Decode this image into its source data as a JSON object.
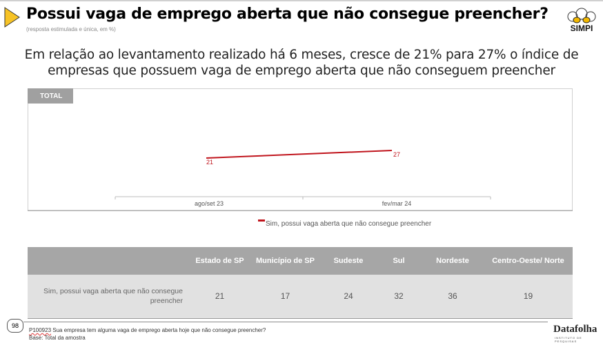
{
  "header": {
    "title": "Possui vaga de emprego aberta que não consegue preencher?",
    "subtitle": "(resposta estimulada e única, em %)",
    "logo": "SIMPI"
  },
  "headline": "Em relação ao levantamento realizado há 6 meses, cresce de 21% para 27% o índice de empresas que possuem vaga de emprego aberta que não conseguem preencher",
  "chart_data": {
    "type": "line",
    "panel_label": "TOTAL",
    "categories": [
      "ago/set 23",
      "fev/mar 24"
    ],
    "series": [
      {
        "name": "Sim, possui vaga aberta que não consegue preencher",
        "values": [
          21,
          27
        ],
        "color": "#c0141c"
      }
    ],
    "grid": false,
    "legend": "bottom"
  },
  "table": {
    "headers": [
      "",
      "Estado de  SP",
      "Município de SP",
      "Sudeste",
      "Sul",
      "Nordeste",
      "Centro-Oeste/ Norte"
    ],
    "rows": [
      {
        "label": "Sim, possui vaga aberta que não consegue preencher",
        "values": [
          "21",
          "17",
          "24",
          "32",
          "36",
          "19"
        ]
      }
    ]
  },
  "footer": {
    "page": "98",
    "question_code": "P100923",
    "question": " Sua empresa tem alguma vaga de emprego aberta hoje que não consegue preencher?",
    "base": "Base: Total da amostra",
    "brand": "Datafolha",
    "brand_sub": "INSTITUTO DE PESQUISAS"
  }
}
